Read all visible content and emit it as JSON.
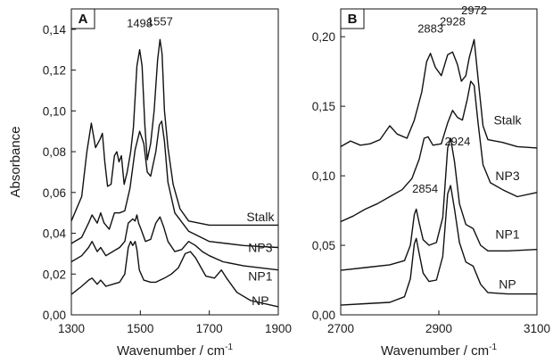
{
  "chart_data": [
    {
      "type": "line",
      "panel_label": "A",
      "xlabel": "Wavenumber / cm",
      "xlabel_sup": "-1",
      "ylabel": "Absorbance",
      "xlim": [
        1300,
        1900
      ],
      "ylim": [
        0,
        0.15
      ],
      "xticks": [
        1300,
        1500,
        1700,
        1900
      ],
      "xtick_labels": [
        "1300",
        "1500",
        "1700",
        "1900"
      ],
      "yticks": [
        0,
        0.02,
        0.04,
        0.06,
        0.08,
        0.1,
        0.12,
        0.14
      ],
      "ytick_labels": [
        "0,00",
        "0,02",
        "0,04",
        "0,06",
        "0,08",
        "0,10",
        "0,12",
        "0,14"
      ],
      "annotations": [
        {
          "text": "1498",
          "x": 1498,
          "y": 0.141
        },
        {
          "text": "1557",
          "x": 1557,
          "y": 0.142
        }
      ],
      "series": [
        {
          "name": "Stalk",
          "label_x": 1848,
          "label_y": 0.048,
          "points": [
            [
              1300,
              0.046
            ],
            [
              1330,
              0.058
            ],
            [
              1345,
              0.08
            ],
            [
              1358,
              0.094
            ],
            [
              1370,
              0.082
            ],
            [
              1383,
              0.086
            ],
            [
              1390,
              0.089
            ],
            [
              1397,
              0.075
            ],
            [
              1405,
              0.063
            ],
            [
              1415,
              0.064
            ],
            [
              1425,
              0.078
            ],
            [
              1432,
              0.08
            ],
            [
              1438,
              0.075
            ],
            [
              1445,
              0.078
            ],
            [
              1453,
              0.064
            ],
            [
              1462,
              0.07
            ],
            [
              1472,
              0.08
            ],
            [
              1480,
              0.092
            ],
            [
              1490,
              0.122
            ],
            [
              1498,
              0.13
            ],
            [
              1505,
              0.122
            ],
            [
              1513,
              0.093
            ],
            [
              1520,
              0.076
            ],
            [
              1530,
              0.084
            ],
            [
              1540,
              0.1
            ],
            [
              1550,
              0.125
            ],
            [
              1557,
              0.135
            ],
            [
              1563,
              0.128
            ],
            [
              1570,
              0.1
            ],
            [
              1580,
              0.082
            ],
            [
              1595,
              0.064
            ],
            [
              1615,
              0.052
            ],
            [
              1640,
              0.046
            ],
            [
              1700,
              0.044
            ],
            [
              1800,
              0.044
            ],
            [
              1900,
              0.044
            ]
          ]
        },
        {
          "name": "NP3",
          "label_x": 1848,
          "label_y": 0.033,
          "points": [
            [
              1300,
              0.035
            ],
            [
              1330,
              0.038
            ],
            [
              1350,
              0.045
            ],
            [
              1360,
              0.049
            ],
            [
              1375,
              0.045
            ],
            [
              1385,
              0.05
            ],
            [
              1395,
              0.045
            ],
            [
              1410,
              0.042
            ],
            [
              1425,
              0.05
            ],
            [
              1440,
              0.05
            ],
            [
              1455,
              0.051
            ],
            [
              1470,
              0.062
            ],
            [
              1485,
              0.081
            ],
            [
              1498,
              0.09
            ],
            [
              1510,
              0.084
            ],
            [
              1520,
              0.07
            ],
            [
              1530,
              0.068
            ],
            [
              1545,
              0.08
            ],
            [
              1555,
              0.093
            ],
            [
              1562,
              0.095
            ],
            [
              1570,
              0.085
            ],
            [
              1580,
              0.065
            ],
            [
              1600,
              0.05
            ],
            [
              1640,
              0.041
            ],
            [
              1700,
              0.036
            ],
            [
              1800,
              0.034
            ],
            [
              1900,
              0.033
            ]
          ]
        },
        {
          "name": "NP1",
          "label_x": 1848,
          "label_y": 0.019,
          "points": [
            [
              1300,
              0.026
            ],
            [
              1330,
              0.029
            ],
            [
              1350,
              0.033
            ],
            [
              1360,
              0.036
            ],
            [
              1375,
              0.031
            ],
            [
              1385,
              0.033
            ],
            [
              1400,
              0.029
            ],
            [
              1420,
              0.031
            ],
            [
              1440,
              0.033
            ],
            [
              1455,
              0.036
            ],
            [
              1465,
              0.045
            ],
            [
              1478,
              0.047
            ],
            [
              1485,
              0.046
            ],
            [
              1490,
              0.049
            ],
            [
              1495,
              0.045
            ],
            [
              1502,
              0.042
            ],
            [
              1515,
              0.036
            ],
            [
              1530,
              0.037
            ],
            [
              1545,
              0.045
            ],
            [
              1557,
              0.048
            ],
            [
              1568,
              0.043
            ],
            [
              1580,
              0.036
            ],
            [
              1600,
              0.031
            ],
            [
              1620,
              0.032
            ],
            [
              1640,
              0.036
            ],
            [
              1660,
              0.034
            ],
            [
              1680,
              0.031
            ],
            [
              1700,
              0.029
            ],
            [
              1740,
              0.026
            ],
            [
              1800,
              0.024
            ],
            [
              1900,
              0.022
            ]
          ]
        },
        {
          "name": "NP",
          "label_x": 1848,
          "label_y": 0.007,
          "points": [
            [
              1300,
              0.01
            ],
            [
              1330,
              0.014
            ],
            [
              1350,
              0.017
            ],
            [
              1360,
              0.018
            ],
            [
              1375,
              0.015
            ],
            [
              1385,
              0.017
            ],
            [
              1400,
              0.014
            ],
            [
              1420,
              0.015
            ],
            [
              1440,
              0.016
            ],
            [
              1455,
              0.02
            ],
            [
              1465,
              0.033
            ],
            [
              1472,
              0.036
            ],
            [
              1478,
              0.034
            ],
            [
              1485,
              0.036
            ],
            [
              1490,
              0.032
            ],
            [
              1497,
              0.022
            ],
            [
              1510,
              0.017
            ],
            [
              1530,
              0.016
            ],
            [
              1545,
              0.016
            ],
            [
              1570,
              0.018
            ],
            [
              1590,
              0.02
            ],
            [
              1610,
              0.023
            ],
            [
              1630,
              0.03
            ],
            [
              1645,
              0.031
            ],
            [
              1660,
              0.028
            ],
            [
              1690,
              0.019
            ],
            [
              1715,
              0.018
            ],
            [
              1735,
              0.022
            ],
            [
              1750,
              0.018
            ],
            [
              1780,
              0.011
            ],
            [
              1820,
              0.007
            ],
            [
              1900,
              0.004
            ]
          ]
        }
      ]
    },
    {
      "type": "line",
      "panel_label": "B",
      "xlabel": "Wavenumber / cm",
      "xlabel_sup": "-1",
      "ylabel": "",
      "xlim": [
        2700,
        3100
      ],
      "ylim": [
        0,
        0.22
      ],
      "xticks": [
        2700,
        2900,
        3100
      ],
      "xtick_labels": [
        "2700",
        "2900",
        "3100"
      ],
      "yticks": [
        0,
        0.05,
        0.1,
        0.15,
        0.2
      ],
      "ytick_labels": [
        "0,00",
        "0,05",
        "0,10",
        "0,15",
        "0,20"
      ],
      "annotations": [
        {
          "text": "2883",
          "x": 2883,
          "y": 0.203
        },
        {
          "text": "2928",
          "x": 2928,
          "y": 0.208
        },
        {
          "text": "2972",
          "x": 2972,
          "y": 0.216
        },
        {
          "text": "2924",
          "x": 2938,
          "y": 0.122
        },
        {
          "text": "2854",
          "x": 2872,
          "y": 0.088
        }
      ],
      "series": [
        {
          "name": "Stalk",
          "label_x": 3040,
          "label_y": 0.14,
          "points": [
            [
              2700,
              0.121
            ],
            [
              2720,
              0.125
            ],
            [
              2740,
              0.122
            ],
            [
              2760,
              0.123
            ],
            [
              2780,
              0.126
            ],
            [
              2800,
              0.136
            ],
            [
              2815,
              0.13
            ],
            [
              2835,
              0.127
            ],
            [
              2850,
              0.14
            ],
            [
              2865,
              0.16
            ],
            [
              2875,
              0.182
            ],
            [
              2883,
              0.188
            ],
            [
              2893,
              0.178
            ],
            [
              2905,
              0.172
            ],
            [
              2918,
              0.187
            ],
            [
              2928,
              0.189
            ],
            [
              2938,
              0.18
            ],
            [
              2946,
              0.168
            ],
            [
              2955,
              0.172
            ],
            [
              2962,
              0.185
            ],
            [
              2972,
              0.198
            ],
            [
              2980,
              0.17
            ],
            [
              2990,
              0.136
            ],
            [
              3000,
              0.126
            ],
            [
              3030,
              0.124
            ],
            [
              3060,
              0.121
            ],
            [
              3100,
              0.12
            ]
          ]
        },
        {
          "name": "NP3",
          "label_x": 3040,
          "label_y": 0.1,
          "points": [
            [
              2700,
              0.067
            ],
            [
              2725,
              0.071
            ],
            [
              2750,
              0.076
            ],
            [
              2775,
              0.08
            ],
            [
              2800,
              0.085
            ],
            [
              2825,
              0.09
            ],
            [
              2845,
              0.098
            ],
            [
              2860,
              0.112
            ],
            [
              2870,
              0.127
            ],
            [
              2878,
              0.128
            ],
            [
              2888,
              0.122
            ],
            [
              2905,
              0.123
            ],
            [
              2918,
              0.138
            ],
            [
              2928,
              0.147
            ],
            [
              2938,
              0.142
            ],
            [
              2948,
              0.14
            ],
            [
              2958,
              0.155
            ],
            [
              2965,
              0.168
            ],
            [
              2972,
              0.165
            ],
            [
              2980,
              0.138
            ],
            [
              2990,
              0.108
            ],
            [
              3005,
              0.095
            ],
            [
              3030,
              0.09
            ],
            [
              3060,
              0.085
            ],
            [
              3100,
              0.088
            ]
          ]
        },
        {
          "name": "NP1",
          "label_x": 3040,
          "label_y": 0.058,
          "points": [
            [
              2700,
              0.032
            ],
            [
              2750,
              0.034
            ],
            [
              2800,
              0.036
            ],
            [
              2830,
              0.039
            ],
            [
              2842,
              0.05
            ],
            [
              2850,
              0.072
            ],
            [
              2854,
              0.076
            ],
            [
              2860,
              0.066
            ],
            [
              2868,
              0.054
            ],
            [
              2880,
              0.05
            ],
            [
              2895,
              0.052
            ],
            [
              2908,
              0.07
            ],
            [
              2918,
              0.12
            ],
            [
              2924,
              0.127
            ],
            [
              2932,
              0.11
            ],
            [
              2942,
              0.08
            ],
            [
              2955,
              0.065
            ],
            [
              2970,
              0.062
            ],
            [
              2985,
              0.05
            ],
            [
              3000,
              0.046
            ],
            [
              3040,
              0.046
            ],
            [
              3100,
              0.047
            ]
          ]
        },
        {
          "name": "NP",
          "label_x": 3040,
          "label_y": 0.022,
          "points": [
            [
              2700,
              0.007
            ],
            [
              2750,
              0.008
            ],
            [
              2800,
              0.009
            ],
            [
              2830,
              0.013
            ],
            [
              2842,
              0.026
            ],
            [
              2850,
              0.051
            ],
            [
              2854,
              0.055
            ],
            [
              2860,
              0.044
            ],
            [
              2868,
              0.03
            ],
            [
              2880,
              0.024
            ],
            [
              2895,
              0.025
            ],
            [
              2908,
              0.042
            ],
            [
              2918,
              0.087
            ],
            [
              2924,
              0.093
            ],
            [
              2932,
              0.076
            ],
            [
              2942,
              0.052
            ],
            [
              2955,
              0.038
            ],
            [
              2970,
              0.035
            ],
            [
              2985,
              0.022
            ],
            [
              3000,
              0.016
            ],
            [
              3040,
              0.015
            ],
            [
              3100,
              0.015
            ]
          ]
        }
      ]
    }
  ]
}
